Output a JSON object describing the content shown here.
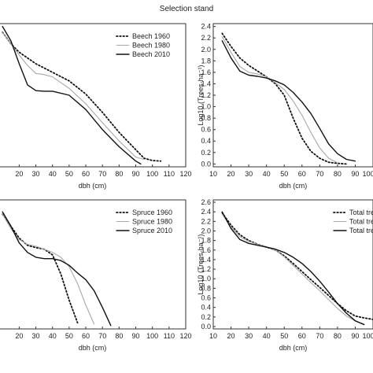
{
  "figure": {
    "title": "Selection stand"
  },
  "chart_data": [
    {
      "type": "line",
      "panel": "top-left",
      "xlabel": "dbh (cm)",
      "ylabel": "",
      "xlim": [
        8,
        120
      ],
      "ylim": [
        -0.05,
        2.45
      ],
      "xticks": [
        20,
        30,
        40,
        50,
        60,
        70,
        80,
        90,
        100,
        110,
        120
      ],
      "yticks": [],
      "legend": "top-right",
      "series": [
        {
          "name": "Beech 1960",
          "style": "dotted",
          "color": "#111111",
          "x": [
            10,
            15,
            20,
            30,
            40,
            50,
            60,
            70,
            80,
            90,
            95,
            100,
            105
          ],
          "y": [
            2.3,
            2.1,
            1.95,
            1.75,
            1.6,
            1.45,
            1.22,
            0.9,
            0.55,
            0.25,
            0.1,
            0.06,
            0.05
          ]
        },
        {
          "name": "Beech 1980",
          "style": "solid-light",
          "color": "#a8a8a8",
          "x": [
            10,
            15,
            20,
            25,
            30,
            35,
            40,
            50,
            60,
            70,
            80,
            90,
            95
          ],
          "y": [
            2.3,
            2.1,
            1.9,
            1.72,
            1.58,
            1.56,
            1.52,
            1.32,
            1.05,
            0.72,
            0.4,
            0.12,
            0.08
          ]
        },
        {
          "name": "Beech 2010",
          "style": "solid",
          "color": "#111111",
          "x": [
            10,
            15,
            20,
            25,
            30,
            35,
            40,
            50,
            60,
            70,
            80,
            90,
            93
          ],
          "y": [
            2.4,
            2.15,
            1.75,
            1.38,
            1.28,
            1.27,
            1.27,
            1.2,
            0.95,
            0.6,
            0.3,
            0.05,
            0.0
          ]
        }
      ]
    },
    {
      "type": "line",
      "panel": "top-right",
      "xlabel": "dbh (cm)",
      "ylabel": "Log10 (Trees·ha⁻¹)",
      "xlim": [
        10,
        100
      ],
      "ylim": [
        -0.05,
        2.45
      ],
      "xticks": [
        10,
        20,
        30,
        40,
        50,
        60,
        70,
        80,
        90,
        100
      ],
      "yticks": [
        0.0,
        0.2,
        0.4,
        0.6,
        0.8,
        1.0,
        1.2,
        1.4,
        1.6,
        1.8,
        2.0,
        2.2,
        2.4
      ],
      "legend": "top-right",
      "series": [
        {
          "name": "",
          "style": "dotted",
          "color": "#111111",
          "x": [
            15,
            20,
            25,
            30,
            35,
            40,
            45,
            50,
            55,
            60,
            65,
            70,
            75,
            80,
            85
          ],
          "y": [
            2.28,
            2.05,
            1.85,
            1.72,
            1.62,
            1.52,
            1.4,
            1.2,
            0.8,
            0.45,
            0.22,
            0.1,
            0.03,
            0.01,
            0.0
          ]
        },
        {
          "name": "",
          "style": "solid-light",
          "color": "#a8a8a8",
          "x": [
            15,
            20,
            25,
            30,
            35,
            40,
            45,
            50,
            55,
            60,
            65,
            70,
            75,
            80
          ],
          "y": [
            2.22,
            1.95,
            1.7,
            1.6,
            1.57,
            1.52,
            1.42,
            1.3,
            1.1,
            0.85,
            0.55,
            0.28,
            0.1,
            0.02
          ]
        },
        {
          "name": "",
          "style": "solid",
          "color": "#111111",
          "x": [
            15,
            20,
            25,
            30,
            35,
            40,
            45,
            50,
            55,
            60,
            65,
            70,
            75,
            80,
            85,
            90
          ],
          "y": [
            2.15,
            1.85,
            1.62,
            1.55,
            1.53,
            1.5,
            1.45,
            1.38,
            1.25,
            1.08,
            0.88,
            0.62,
            0.35,
            0.18,
            0.08,
            0.05
          ]
        }
      ]
    },
    {
      "type": "line",
      "panel": "bottom-left",
      "xlabel": "dbh (cm)",
      "ylabel": "",
      "xlim": [
        8,
        120
      ],
      "ylim": [
        -0.05,
        2.65
      ],
      "xticks": [
        20,
        30,
        40,
        50,
        60,
        70,
        80,
        90,
        100,
        110,
        120
      ],
      "yticks": [],
      "legend": "top-right",
      "series": [
        {
          "name": "Spruce 1960",
          "style": "dotted",
          "color": "#111111",
          "x": [
            10,
            15,
            20,
            25,
            30,
            35,
            40,
            45,
            50,
            55
          ],
          "y": [
            2.35,
            2.1,
            1.85,
            1.7,
            1.65,
            1.62,
            1.5,
            1.1,
            0.55,
            0.08
          ]
        },
        {
          "name": "Spruce 1980",
          "style": "solid-light",
          "color": "#a8a8a8",
          "x": [
            10,
            15,
            20,
            25,
            30,
            35,
            40,
            45,
            50,
            55,
            60,
            65
          ],
          "y": [
            2.35,
            2.05,
            1.82,
            1.72,
            1.68,
            1.62,
            1.55,
            1.45,
            1.25,
            0.9,
            0.45,
            0.05
          ]
        },
        {
          "name": "Spruce 2010",
          "style": "solid",
          "color": "#111111",
          "x": [
            10,
            15,
            20,
            25,
            30,
            35,
            40,
            45,
            50,
            55,
            60,
            65,
            70,
            75
          ],
          "y": [
            2.4,
            2.1,
            1.75,
            1.55,
            1.45,
            1.42,
            1.42,
            1.38,
            1.28,
            1.12,
            0.98,
            0.75,
            0.4,
            0.02
          ]
        }
      ]
    },
    {
      "type": "line",
      "panel": "bottom-right",
      "xlabel": "dbh (cm)",
      "ylabel": "Log10 (Trees·ha⁻¹)",
      "xlim": [
        10,
        100
      ],
      "ylim": [
        -0.05,
        2.65
      ],
      "xticks": [
        10,
        20,
        30,
        40,
        50,
        60,
        70,
        80,
        90,
        100
      ],
      "yticks": [
        0.0,
        0.2,
        0.4,
        0.6,
        0.8,
        1.0,
        1.2,
        1.4,
        1.6,
        1.8,
        2.0,
        2.2,
        2.4,
        2.6
      ],
      "legend": "top-right",
      "legend_entries": [
        "Total tre",
        "Total tre",
        "Total tre"
      ],
      "series": [
        {
          "name": "",
          "style": "dotted",
          "color": "#111111",
          "x": [
            15,
            20,
            25,
            30,
            35,
            40,
            45,
            50,
            55,
            60,
            65,
            70,
            75,
            80,
            85,
            90,
            95,
            100
          ],
          "y": [
            2.38,
            2.12,
            1.92,
            1.8,
            1.72,
            1.66,
            1.6,
            1.48,
            1.32,
            1.15,
            0.98,
            0.82,
            0.65,
            0.48,
            0.33,
            0.22,
            0.18,
            0.15
          ]
        },
        {
          "name": "",
          "style": "solid-light",
          "color": "#a8a8a8",
          "x": [
            15,
            20,
            25,
            30,
            35,
            40,
            45,
            50,
            55,
            60,
            65,
            70,
            75,
            80,
            85,
            90,
            95
          ],
          "y": [
            2.35,
            2.08,
            1.88,
            1.78,
            1.72,
            1.66,
            1.6,
            1.46,
            1.28,
            1.1,
            0.92,
            0.75,
            0.56,
            0.38,
            0.22,
            0.12,
            0.05
          ]
        },
        {
          "name": "",
          "style": "solid",
          "color": "#111111",
          "x": [
            15,
            20,
            25,
            30,
            35,
            40,
            45,
            50,
            55,
            60,
            65,
            70,
            75,
            80,
            85,
            90,
            95
          ],
          "y": [
            2.4,
            2.05,
            1.82,
            1.74,
            1.7,
            1.66,
            1.62,
            1.55,
            1.45,
            1.32,
            1.15,
            0.95,
            0.72,
            0.48,
            0.28,
            0.12,
            0.04
          ]
        }
      ]
    }
  ]
}
